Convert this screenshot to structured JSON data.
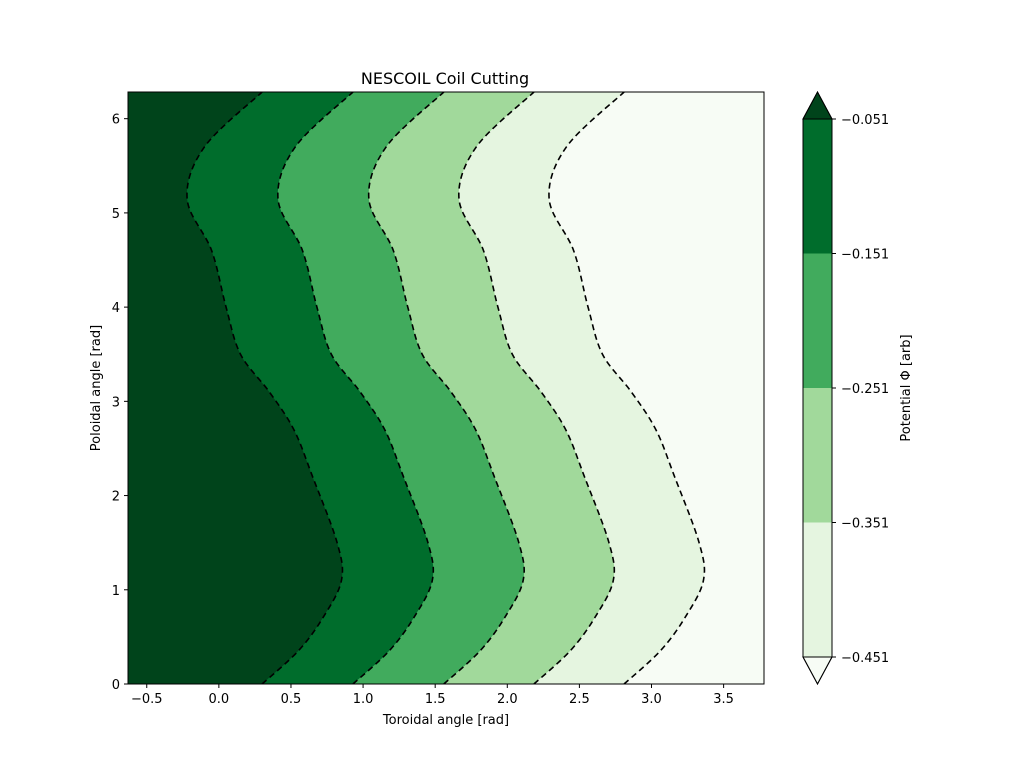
{
  "chart_data": {
    "type": "contour",
    "title": "NESCOIL Coil Cutting",
    "xlabel": "Toroidal angle [rad]",
    "ylabel": "Poloidal angle [rad]",
    "xlim": [
      -0.63,
      3.78
    ],
    "ylim": [
      0,
      6.2832
    ],
    "x_ticks": [
      "−0.5",
      "0.0",
      "0.5",
      "1.0",
      "1.5",
      "2.0",
      "2.5",
      "3.0",
      "3.5"
    ],
    "x_tick_values": [
      -0.5,
      0.0,
      0.5,
      1.0,
      1.5,
      2.0,
      2.5,
      3.0,
      3.5
    ],
    "y_ticks": [
      "0",
      "1",
      "2",
      "3",
      "4",
      "5",
      "6"
    ],
    "y_tick_values": [
      0,
      1,
      2,
      3,
      4,
      5,
      6
    ],
    "contour_style": "dashed",
    "contour_color": "#000000",
    "contour_offsets": [
      0.0,
      0.63,
      1.26,
      1.885,
      2.51
    ],
    "contour_base_curve": [
      [
        0.3,
        0.0
      ],
      [
        0.55,
        0.35
      ],
      [
        0.72,
        0.7
      ],
      [
        0.85,
        1.1
      ],
      [
        0.82,
        1.5
      ],
      [
        0.65,
        2.2
      ],
      [
        0.52,
        2.7
      ],
      [
        0.35,
        3.1
      ],
      [
        0.15,
        3.5
      ],
      [
        0.05,
        4.0
      ],
      [
        -0.05,
        4.6
      ],
      [
        -0.22,
        5.15
      ],
      [
        -0.1,
        5.7
      ],
      [
        0.3,
        6.2832
      ]
    ],
    "colorbar": {
      "label": "Potential Φ [arb]",
      "ticks": [
        "−0.051",
        "−0.151",
        "−0.251",
        "−0.351",
        "−0.451"
      ],
      "levels": [
        -0.451,
        -0.351,
        -0.251,
        -0.151,
        -0.051
      ],
      "band_colors": [
        "#e5f5e0",
        "#a1d99b",
        "#41ab5d",
        "#006d2c"
      ],
      "extend_over_color": "#00441b",
      "extend_under_color": "#f7fcf5"
    },
    "region_colors": [
      "#00441b",
      "#006d2c",
      "#41ab5d",
      "#a1d99b",
      "#e5f5e0",
      "#f7fcf5"
    ],
    "grid": false
  }
}
